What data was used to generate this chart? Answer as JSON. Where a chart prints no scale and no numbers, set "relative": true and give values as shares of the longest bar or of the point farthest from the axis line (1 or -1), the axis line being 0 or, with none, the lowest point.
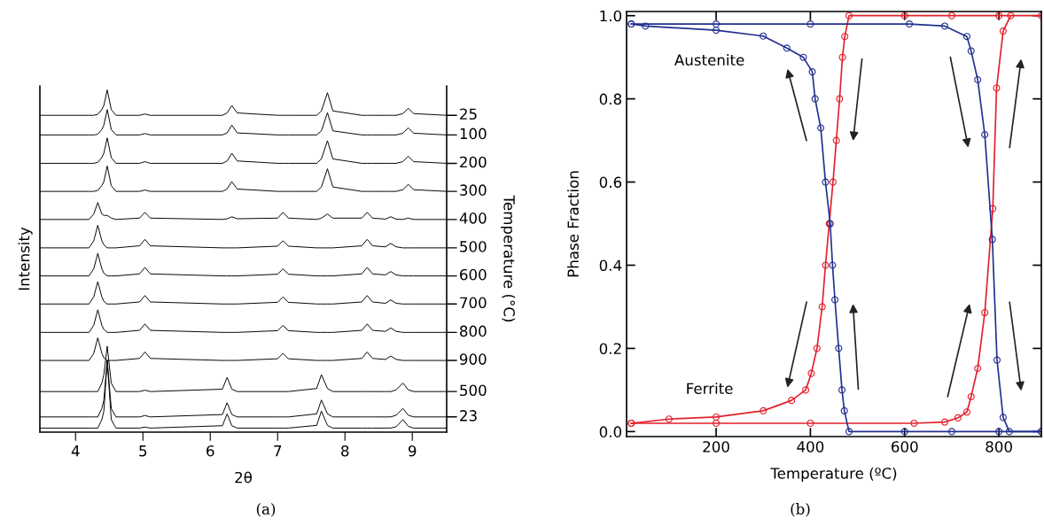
{
  "chart_data": [
    {
      "type": "line",
      "relative": true,
      "xlabel": "2θ",
      "ylabel": "Intensity",
      "y2label": "Temperature (°C)",
      "annotations": [
        "25",
        "100",
        "200",
        "300",
        "400",
        "500",
        "600",
        "700",
        "800",
        "900",
        "500",
        "23",
        "(a)"
      ],
      "x": [
        3.47,
        4.2,
        4.27,
        4.33,
        4.39,
        4.42,
        4.47,
        4.53,
        4.6,
        4.95,
        5.03,
        5.11,
        6.18,
        6.25,
        6.32,
        6.4,
        7.0,
        7.08,
        7.16,
        7.58,
        7.65,
        7.74,
        7.82,
        8.25,
        8.33,
        8.41,
        8.6,
        8.68,
        8.76,
        8.86,
        8.94,
        9.02,
        9.51
      ],
      "xlim": [
        3.47,
        9.51
      ],
      "xticks": [
        4,
        5,
        6,
        7,
        8,
        9
      ],
      "marker": "none",
      "line_style": "solid",
      "grid": false,
      "legend": false,
      "series": [
        {
          "color": "#000000",
          "values": [
            0.925,
            0.925,
            0.925,
            0.928,
            0.942,
            0.954,
            1.0,
            0.942,
            0.925,
            0.925,
            0.929,
            0.925,
            0.925,
            0.932,
            0.954,
            0.932,
            0.925,
            0.925,
            0.925,
            0.925,
            0.938,
            0.992,
            0.938,
            0.925,
            0.925,
            0.925,
            0.925,
            0.925,
            0.925,
            0.93,
            0.946,
            0.93,
            0.925
          ]
        },
        {
          "color": "#000000",
          "values": [
            0.867,
            0.867,
            0.867,
            0.869,
            0.883,
            0.896,
            0.942,
            0.883,
            0.867,
            0.867,
            0.871,
            0.867,
            0.867,
            0.873,
            0.896,
            0.873,
            0.867,
            0.867,
            0.867,
            0.867,
            0.879,
            0.933,
            0.879,
            0.867,
            0.867,
            0.867,
            0.867,
            0.867,
            0.867,
            0.872,
            0.888,
            0.872,
            0.867
          ]
        },
        {
          "color": "#000000",
          "values": [
            0.783,
            0.783,
            0.783,
            0.786,
            0.8,
            0.813,
            0.858,
            0.8,
            0.783,
            0.783,
            0.788,
            0.783,
            0.783,
            0.79,
            0.813,
            0.79,
            0.783,
            0.783,
            0.783,
            0.783,
            0.796,
            0.85,
            0.796,
            0.783,
            0.783,
            0.783,
            0.783,
            0.783,
            0.783,
            0.788,
            0.804,
            0.788,
            0.783
          ]
        },
        {
          "color": "#000000",
          "values": [
            0.7,
            0.7,
            0.7,
            0.703,
            0.717,
            0.729,
            0.775,
            0.717,
            0.7,
            0.7,
            0.704,
            0.7,
            0.7,
            0.707,
            0.729,
            0.707,
            0.7,
            0.7,
            0.7,
            0.7,
            0.713,
            0.767,
            0.713,
            0.7,
            0.7,
            0.7,
            0.7,
            0.7,
            0.7,
            0.705,
            0.721,
            0.705,
            0.7
          ]
        },
        {
          "color": "#000000",
          "values": [
            0.617,
            0.617,
            0.633,
            0.667,
            0.633,
            0.629,
            0.629,
            0.621,
            0.617,
            0.621,
            0.638,
            0.621,
            0.617,
            0.619,
            0.625,
            0.619,
            0.621,
            0.638,
            0.621,
            0.617,
            0.621,
            0.633,
            0.621,
            0.621,
            0.638,
            0.621,
            0.618,
            0.625,
            0.618,
            0.617,
            0.621,
            0.617,
            0.617
          ]
        },
        {
          "color": "#000000",
          "values": [
            0.533,
            0.533,
            0.554,
            0.6,
            0.554,
            0.542,
            0.533,
            0.533,
            0.533,
            0.539,
            0.558,
            0.539,
            0.533,
            0.533,
            0.533,
            0.533,
            0.538,
            0.554,
            0.538,
            0.533,
            0.533,
            0.533,
            0.533,
            0.539,
            0.558,
            0.539,
            0.536,
            0.546,
            0.536,
            0.533,
            0.533,
            0.533,
            0.533
          ]
        },
        {
          "color": "#000000",
          "values": [
            0.45,
            0.45,
            0.471,
            0.517,
            0.471,
            0.458,
            0.45,
            0.45,
            0.45,
            0.456,
            0.475,
            0.456,
            0.45,
            0.45,
            0.45,
            0.45,
            0.455,
            0.471,
            0.455,
            0.45,
            0.45,
            0.45,
            0.45,
            0.456,
            0.475,
            0.456,
            0.453,
            0.463,
            0.453,
            0.45,
            0.45,
            0.45,
            0.45
          ]
        },
        {
          "color": "#000000",
          "values": [
            0.367,
            0.367,
            0.388,
            0.433,
            0.388,
            0.375,
            0.367,
            0.367,
            0.367,
            0.373,
            0.392,
            0.373,
            0.367,
            0.367,
            0.367,
            0.367,
            0.372,
            0.388,
            0.372,
            0.367,
            0.367,
            0.367,
            0.367,
            0.373,
            0.392,
            0.373,
            0.369,
            0.379,
            0.369,
            0.367,
            0.367,
            0.367,
            0.367
          ]
        },
        {
          "color": "#000000",
          "values": [
            0.283,
            0.283,
            0.304,
            0.35,
            0.304,
            0.292,
            0.283,
            0.283,
            0.283,
            0.289,
            0.308,
            0.289,
            0.283,
            0.283,
            0.283,
            0.283,
            0.288,
            0.304,
            0.288,
            0.283,
            0.283,
            0.283,
            0.283,
            0.289,
            0.308,
            0.289,
            0.286,
            0.296,
            0.286,
            0.283,
            0.283,
            0.283,
            0.283
          ]
        },
        {
          "color": "#000000",
          "values": [
            0.2,
            0.2,
            0.221,
            0.267,
            0.221,
            0.208,
            0.2,
            0.2,
            0.2,
            0.206,
            0.225,
            0.206,
            0.2,
            0.2,
            0.2,
            0.2,
            0.205,
            0.221,
            0.205,
            0.2,
            0.2,
            0.2,
            0.2,
            0.206,
            0.225,
            0.206,
            0.203,
            0.213,
            0.203,
            0.2,
            0.2,
            0.2,
            0.2
          ]
        },
        {
          "color": "#000000",
          "values": [
            0.108,
            0.108,
            0.108,
            0.108,
            0.133,
            0.158,
            0.242,
            0.133,
            0.108,
            0.108,
            0.112,
            0.108,
            0.115,
            0.15,
            0.115,
            0.108,
            0.108,
            0.108,
            0.108,
            0.117,
            0.158,
            0.117,
            0.108,
            0.108,
            0.108,
            0.108,
            0.108,
            0.108,
            0.113,
            0.133,
            0.113,
            0.108,
            0.108
          ]
        },
        {
          "color": "#000000",
          "values": [
            0.033,
            0.033,
            0.033,
            0.033,
            0.058,
            0.083,
            0.2,
            0.058,
            0.033,
            0.033,
            0.037,
            0.033,
            0.04,
            0.075,
            0.04,
            0.033,
            0.033,
            0.033,
            0.033,
            0.042,
            0.083,
            0.042,
            0.033,
            0.033,
            0.033,
            0.033,
            0.033,
            0.033,
            0.038,
            0.058,
            0.038,
            0.033,
            0.033
          ]
        },
        {
          "color": "#000000",
          "values": [
            0,
            0,
            0,
            0,
            0.025,
            0.05,
            0.2,
            0.025,
            0,
            0,
            0.003,
            0,
            0.007,
            0.042,
            0.007,
            0,
            0,
            0,
            0,
            0.008,
            0.05,
            0.008,
            0,
            0,
            0,
            0,
            0,
            0,
            0.004,
            0.025,
            0.005,
            0,
            0
          ]
        }
      ]
    },
    {
      "type": "line",
      "xlabel": "Temperature (ºC)",
      "ylabel": "Phase Fraction",
      "annotations": [
        "Austenite",
        "Ferrite",
        "(b)"
      ],
      "xlim": [
        10,
        890
      ],
      "xticks": [
        200,
        400,
        600,
        800
      ],
      "ylim": [
        -0.012,
        1.01
      ],
      "yticks": [
        {
          "value": 0,
          "label": "0.0"
        },
        0.2,
        0.4,
        0.6,
        0.8,
        {
          "value": 1,
          "label": "1.0"
        }
      ],
      "marker": "circle",
      "line_style": "solid",
      "grid": false,
      "legend": false,
      "series": [
        {
          "color": "#e3202c",
          "x": [
            20,
            100,
            200,
            300,
            360,
            390,
            402,
            414,
            425,
            432,
            440,
            448,
            455,
            462,
            468,
            473,
            482,
            600,
            700,
            800,
            890
          ],
          "values": [
            0.02,
            0.03,
            0.035,
            0.05,
            0.075,
            0.1,
            0.14,
            0.2,
            0.3,
            0.4,
            0.5,
            0.6,
            0.7,
            0.8,
            0.9,
            0.95,
            1.0,
            1.0,
            1.0,
            1.0,
            1.0
          ]
        },
        {
          "color": "#e3202c",
          "x": [
            20,
            200,
            400,
            620,
            685,
            713,
            732,
            741,
            755,
            770,
            787,
            795,
            809,
            825
          ],
          "values": [
            0.02,
            0.02,
            0.02,
            0.02,
            0.023,
            0.033,
            0.047,
            0.084,
            0.152,
            0.286,
            0.536,
            0.826,
            0.963,
            1.0
          ]
        },
        {
          "color": "#22308f",
          "x": [
            20,
            50,
            200,
            300,
            350,
            385,
            404,
            410,
            422,
            432,
            442,
            447,
            452,
            460,
            467,
            472,
            482,
            600,
            700,
            800,
            890
          ],
          "values": [
            0.98,
            0.975,
            0.965,
            0.951,
            0.922,
            0.9,
            0.865,
            0.8,
            0.73,
            0.6,
            0.5,
            0.4,
            0.317,
            0.2,
            0.1,
            0.05,
            0.0,
            0.0,
            0.0,
            0.0,
            0.0
          ]
        },
        {
          "color": "#22308f",
          "x": [
            20,
            200,
            400,
            610,
            685,
            732,
            741,
            755,
            770,
            786,
            796,
            809,
            822,
            890
          ],
          "values": [
            0.98,
            0.98,
            0.98,
            0.98,
            0.975,
            0.95,
            0.915,
            0.846,
            0.714,
            0.462,
            0.172,
            0.034,
            0.0,
            0.0
          ]
        }
      ]
    }
  ]
}
